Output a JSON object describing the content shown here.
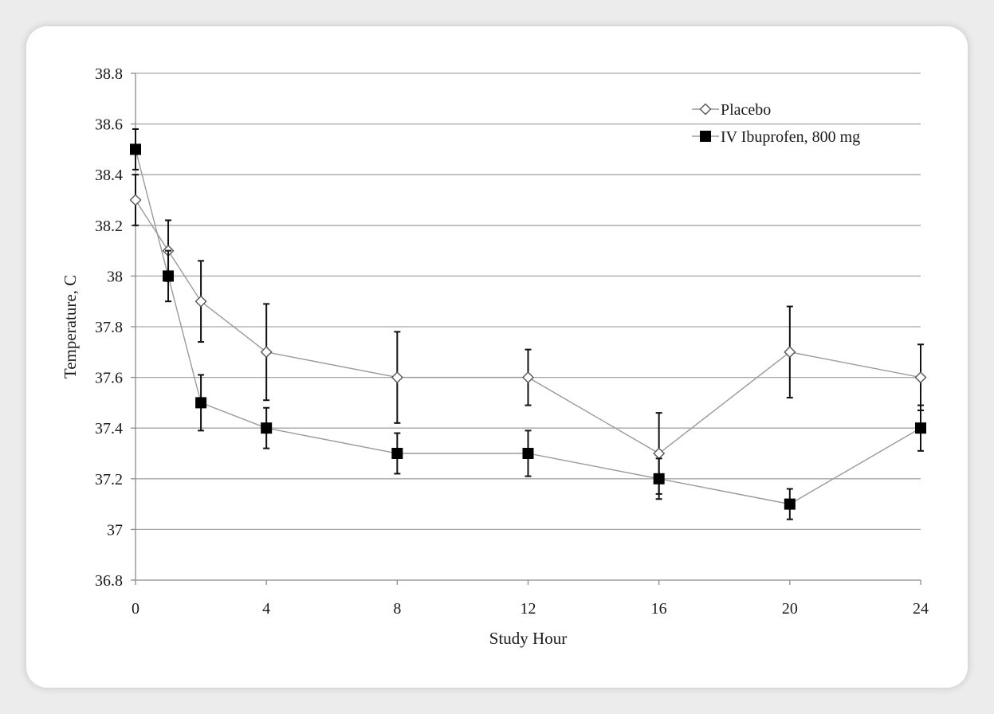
{
  "chart_data": {
    "type": "line",
    "title": "",
    "xlabel": "Study Hour",
    "ylabel": "Temperature, C",
    "x": [
      0,
      1,
      2,
      4,
      8,
      12,
      16,
      20,
      24
    ],
    "xticks": [
      0,
      4,
      8,
      12,
      16,
      20,
      24
    ],
    "xlim": [
      0,
      24
    ],
    "ylim": [
      36.8,
      38.8
    ],
    "yticks": [
      36.8,
      37,
      37.2,
      37.4,
      37.6,
      37.8,
      38,
      38.2,
      38.4,
      38.6,
      38.8
    ],
    "ytick_labels": [
      "36.8",
      "37",
      "37.2",
      "37.4",
      "37.6",
      "37.8",
      "38",
      "38.2",
      "38.4",
      "38.6",
      "38.8"
    ],
    "grid": "horizontal",
    "legend_position": "top-right",
    "series": [
      {
        "name": "Placebo",
        "marker": "open-diamond",
        "color": "#999999",
        "values": [
          38.3,
          38.1,
          37.9,
          37.7,
          37.6,
          37.6,
          37.3,
          37.7,
          37.6
        ],
        "error_upper": [
          38.4,
          38.22,
          38.06,
          37.89,
          37.78,
          37.71,
          37.46,
          37.88,
          37.73
        ],
        "error_lower": [
          38.2,
          37.98,
          37.74,
          37.51,
          37.42,
          37.49,
          37.14,
          37.52,
          37.47
        ]
      },
      {
        "name": "IV Ibuprofen, 800 mg",
        "marker": "filled-square",
        "color": "#000000",
        "values": [
          38.5,
          38.0,
          37.5,
          37.4,
          37.3,
          37.3,
          37.2,
          37.1,
          37.4
        ],
        "error_upper": [
          38.58,
          38.1,
          37.61,
          37.48,
          37.38,
          37.39,
          37.28,
          37.16,
          37.49
        ],
        "error_lower": [
          38.42,
          37.9,
          37.39,
          37.32,
          37.22,
          37.21,
          37.12,
          37.04,
          37.31
        ]
      }
    ]
  }
}
